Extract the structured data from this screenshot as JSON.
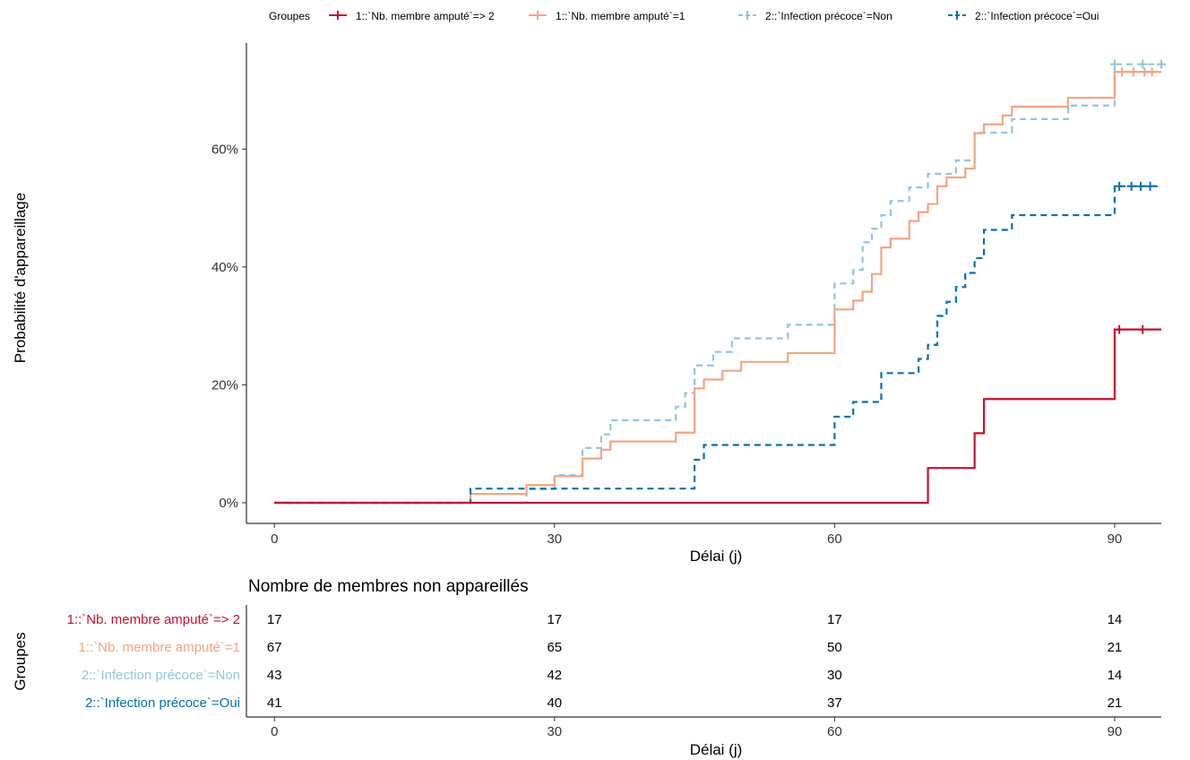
{
  "legend": {
    "title": "Groupes",
    "entries": [
      "1::`Nb. membre amputé`=> 2",
      "1::`Nb. membre amputé`=1",
      "2::`Infection précoce`=Non",
      "2::`Infection précoce`=Oui"
    ]
  },
  "risk_table": {
    "title": "Nombre de membres non appareillés",
    "ylabel": "Groupes",
    "xlabel": "Délai (j)",
    "times": [
      0,
      30,
      60,
      90
    ],
    "groups": [
      "1::`Nb. membre amputé`=> 2",
      "1::`Nb. membre amputé`=1",
      "2::`Infection précoce`=Non",
      "2::`Infection précoce`=Oui"
    ],
    "counts": [
      [
        17,
        17,
        17,
        14
      ],
      [
        67,
        65,
        50,
        21
      ],
      [
        43,
        42,
        30,
        14
      ],
      [
        41,
        40,
        37,
        21
      ]
    ]
  },
  "chart_data": {
    "type": "line",
    "step": true,
    "xlabel": "Délai (j)",
    "ylabel": "Probabilité d'appareillage",
    "xlim": [
      -3,
      95
    ],
    "ylim": [
      -3.5,
      78
    ],
    "xticks": [
      0,
      30,
      60,
      90
    ],
    "yticks": [
      0,
      20,
      40,
      60
    ],
    "yticklabels": [
      "0%",
      "20%",
      "40%",
      "60%"
    ],
    "series": [
      {
        "name": "1::`Nb. membre amputé`=> 2",
        "color": "#c8102e",
        "dash": "solid",
        "x": [
          0,
          70,
          75,
          76,
          90,
          95
        ],
        "y": [
          0,
          5.9,
          11.8,
          17.6,
          29.4,
          29.4
        ],
        "censor_x": [
          90.5,
          93
        ],
        "censor_y": [
          29.4,
          29.4
        ]
      },
      {
        "name": "1::`Nb. membre amputé`=1",
        "color": "#f4a582",
        "dash": "solid",
        "x": [
          0,
          21,
          27,
          30,
          33,
          35,
          36,
          43,
          45,
          46,
          48,
          50,
          55,
          60,
          62,
          63,
          64,
          65,
          66,
          68,
          69,
          70,
          71,
          72,
          74,
          75,
          76,
          78,
          79,
          85,
          90,
          95
        ],
        "y": [
          0,
          1.5,
          3.0,
          4.5,
          7.5,
          9.0,
          10.4,
          11.9,
          19.4,
          20.9,
          22.4,
          23.9,
          25.4,
          32.8,
          34.3,
          35.8,
          38.8,
          43.3,
          44.8,
          47.8,
          49.3,
          50.7,
          53.7,
          55.2,
          56.7,
          62.7,
          64.2,
          65.7,
          67.2,
          68.7,
          73.1,
          73.1
        ],
        "censor_x": [
          90.8,
          92,
          93.2,
          94
        ],
        "censor_y": [
          73.1,
          73.1,
          73.1,
          73.1
        ]
      },
      {
        "name": "2::`Infection précoce`=Non",
        "color": "#92c5de",
        "dash": "dashed",
        "x": [
          0,
          27,
          30,
          33,
          35,
          36,
          43,
          44,
          45,
          47,
          49,
          55,
          60,
          62,
          63,
          64,
          65,
          66,
          68,
          70,
          73,
          75,
          79,
          85,
          90,
          95
        ],
        "y": [
          0,
          2.3,
          4.7,
          9.3,
          11.6,
          14.0,
          16.3,
          18.6,
          23.3,
          25.6,
          27.9,
          30.2,
          37.2,
          39.5,
          44.2,
          46.5,
          48.8,
          51.2,
          53.5,
          55.8,
          58.1,
          62.8,
          65.1,
          67.4,
          74.4,
          74.4
        ],
        "censor_x": [
          90,
          93,
          95
        ],
        "censor_y": [
          74.4,
          74.4,
          74.4
        ]
      },
      {
        "name": "2::`Infection précoce`=Oui",
        "color": "#0571b0",
        "dash": "dashed",
        "x": [
          0,
          21,
          45,
          46,
          60,
          62,
          65,
          69,
          70,
          71,
          72,
          73,
          74,
          75,
          76,
          79,
          90,
          95
        ],
        "y": [
          0,
          2.4,
          7.3,
          9.8,
          14.6,
          17.1,
          22.0,
          24.4,
          26.8,
          31.7,
          34.1,
          36.6,
          39.0,
          41.5,
          46.3,
          48.8,
          53.7,
          53.7
        ],
        "censor_x": [
          90.5,
          91.8,
          92.8,
          93.8
        ],
        "censor_y": [
          53.7,
          53.7,
          53.7,
          53.7
        ]
      }
    ]
  }
}
